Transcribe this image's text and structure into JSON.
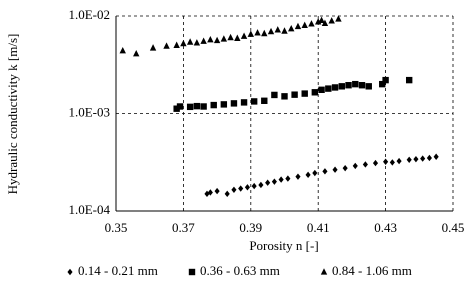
{
  "chart_data": {
    "type": "scatter",
    "x_label": "Porosity n  [-]",
    "y_label": "Hydraulic conductivity k [m/s]",
    "xlim": [
      0.35,
      0.45
    ],
    "xticks": [
      0.35,
      0.37,
      0.39,
      0.41,
      0.43,
      0.45
    ],
    "ylim": [
      0.0001,
      0.01
    ],
    "y_scale": "log",
    "yticks": [
      {
        "value": 0.0001,
        "label": "1.0E-04"
      },
      {
        "value": 0.001,
        "label": "1.0E-03"
      },
      {
        "value": 0.01,
        "label": "1.0E-02"
      }
    ],
    "grid": true,
    "legend": "bottom",
    "series": [
      {
        "name": "0.14 - 0.21 mm",
        "color": "#000000",
        "marker": "diamond",
        "x": [
          0.377,
          0.378,
          0.38,
          0.383,
          0.385,
          0.387,
          0.389,
          0.391,
          0.393,
          0.395,
          0.397,
          0.399,
          0.401,
          0.404,
          0.407,
          0.409,
          0.412,
          0.415,
          0.418,
          0.421,
          0.424,
          0.427,
          0.43,
          0.432,
          0.434,
          0.437,
          0.439,
          0.441,
          0.443,
          0.445
        ],
        "values": [
          0.00015,
          0.000155,
          0.00016,
          0.00015,
          0.000165,
          0.00017,
          0.000175,
          0.00018,
          0.000185,
          0.000195,
          0.0002,
          0.00021,
          0.000215,
          0.000225,
          0.000235,
          0.000245,
          0.000255,
          0.000265,
          0.000275,
          0.00029,
          0.0003,
          0.00031,
          0.00032,
          0.000315,
          0.000325,
          0.000335,
          0.00034,
          0.000345,
          0.00035,
          0.00036
        ]
      },
      {
        "name": "0.36 - 0.63 mm",
        "color": "#000000",
        "marker": "square",
        "x": [
          0.368,
          0.369,
          0.372,
          0.374,
          0.376,
          0.379,
          0.382,
          0.385,
          0.388,
          0.391,
          0.394,
          0.397,
          0.4,
          0.403,
          0.406,
          0.409,
          0.411,
          0.413,
          0.415,
          0.417,
          0.419,
          0.421,
          0.423,
          0.425,
          0.429,
          0.43,
          0.437
        ],
        "values": [
          0.00112,
          0.00118,
          0.00117,
          0.00119,
          0.00118,
          0.00122,
          0.00124,
          0.00127,
          0.0013,
          0.00133,
          0.00135,
          0.00155,
          0.0015,
          0.00156,
          0.0016,
          0.00165,
          0.00175,
          0.0018,
          0.00185,
          0.0019,
          0.00195,
          0.002,
          0.00195,
          0.0019,
          0.002,
          0.0022,
          0.0022
        ]
      },
      {
        "name": "0.84 - 1.06 mm",
        "color": "#000000",
        "marker": "triangle",
        "x": [
          0.352,
          0.356,
          0.361,
          0.365,
          0.368,
          0.37,
          0.372,
          0.374,
          0.376,
          0.378,
          0.38,
          0.382,
          0.384,
          0.386,
          0.388,
          0.39,
          0.392,
          0.394,
          0.396,
          0.398,
          0.4,
          0.402,
          0.404,
          0.406,
          0.408,
          0.41,
          0.411,
          0.412,
          0.414,
          0.416
        ],
        "values": [
          0.0044,
          0.0041,
          0.0047,
          0.0049,
          0.005,
          0.0052,
          0.0054,
          0.0053,
          0.0055,
          0.0057,
          0.0056,
          0.0058,
          0.006,
          0.0059,
          0.0062,
          0.0065,
          0.0067,
          0.0066,
          0.0069,
          0.0072,
          0.007,
          0.0074,
          0.0078,
          0.008,
          0.0083,
          0.0087,
          0.009,
          0.0084,
          0.0089,
          0.0093
        ]
      }
    ]
  }
}
